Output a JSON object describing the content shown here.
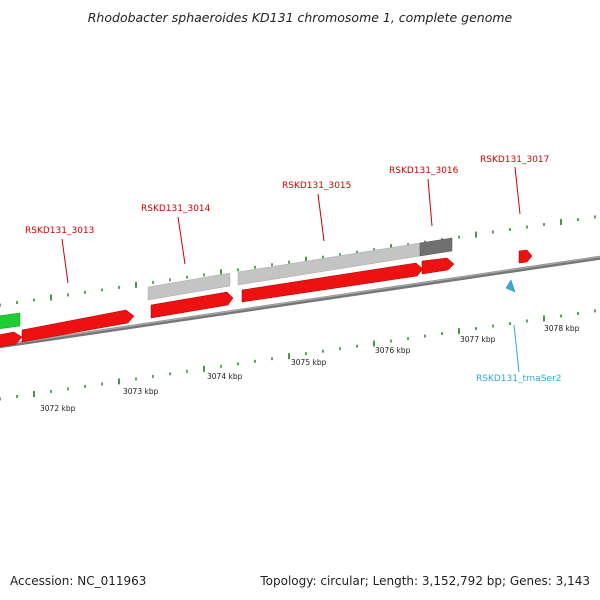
{
  "header": {
    "title": "Rhodobacter sphaeroides KD131 chromosome 1, complete genome"
  },
  "footer": {
    "accession": "Accession: NC_011963",
    "summary": "Topology: circular; Length: 3,152,792 bp; Genes: 3,143"
  },
  "colors": {
    "cds": "#ee1111",
    "pseudo_light": "#bdbdbd",
    "pseudo_dark": "#6e6e6e",
    "rrna": "#22cc33",
    "trna": "#33aadd",
    "backbone": "#808080",
    "tick": "#1a7f1a",
    "gene_label": "#cc0000",
    "trna_label": "#2aa9d8"
  },
  "ticks": {
    "labels": [
      "3072 kbp",
      "3073 kbp",
      "3074 kbp",
      "3075 kbp",
      "3076 kbp",
      "3077 kbp",
      "3078 kbp"
    ]
  },
  "genes": {
    "labels": [
      {
        "text": "RSKD131_3013",
        "kind": "cds"
      },
      {
        "text": "RSKD131_3014",
        "kind": "cds"
      },
      {
        "text": "RSKD131_3015",
        "kind": "cds"
      },
      {
        "text": "RSKD131_3016",
        "kind": "cds"
      },
      {
        "text": "RSKD131_3017",
        "kind": "cds"
      },
      {
        "text": "RSKD131_trnaSer2",
        "kind": "trna"
      }
    ]
  }
}
